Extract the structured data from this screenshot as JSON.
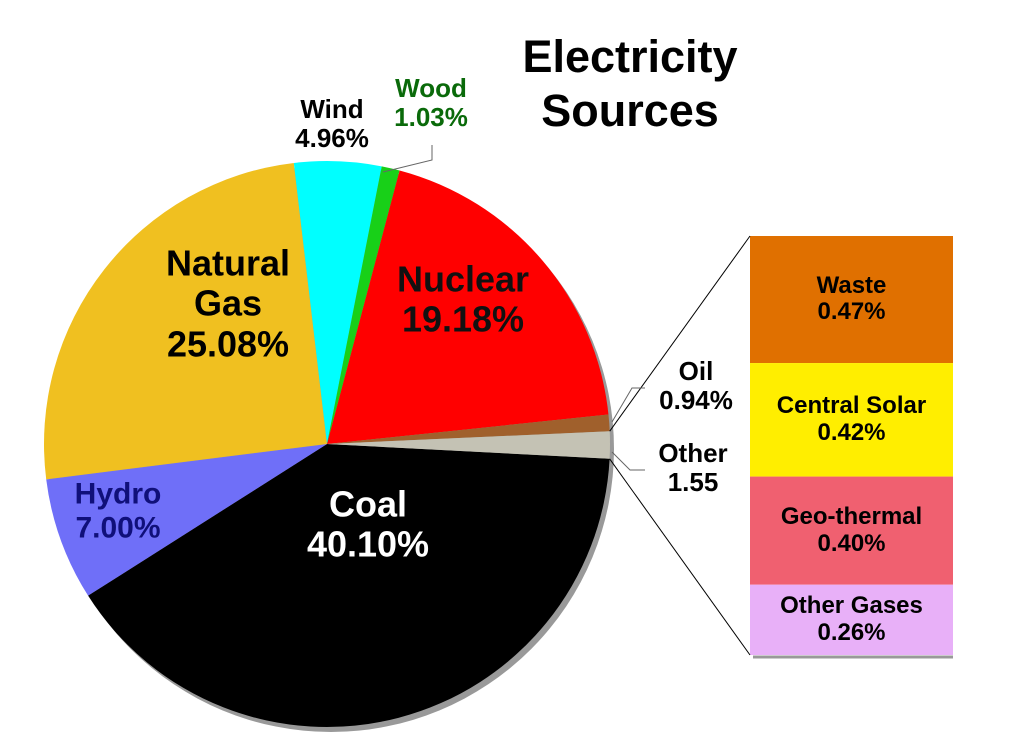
{
  "chart_data": {
    "type": "pie",
    "title": "Electricity Sources",
    "categories": [
      "Coal",
      "Hydro",
      "Natural Gas",
      "Wind",
      "Wood",
      "Nuclear",
      "Oil",
      "Other"
    ],
    "values": [
      40.1,
      7.0,
      25.08,
      4.96,
      1.03,
      19.18,
      0.94,
      1.55
    ],
    "value_labels": [
      "40.10%",
      "7.00%",
      "25.08%",
      "4.96%",
      "1.03%",
      "19.18%",
      "0.94%",
      "1.55"
    ],
    "colors": [
      "#000000",
      "#6f6ff8",
      "#f0c020",
      "#00ffff",
      "#18d018",
      "#ff0000",
      "#a0602c",
      "#c4c2b4"
    ],
    "breakout": {
      "categories": [
        "Waste",
        "Central Solar",
        "Geo-thermal",
        "Other Gases"
      ],
      "values": [
        0.47,
        0.42,
        0.4,
        0.26
      ],
      "value_labels": [
        "0.47%",
        "0.42%",
        "0.40%",
        "0.26%"
      ],
      "colors": [
        "#e07000",
        "#ffee00",
        "#f06070",
        "#e8b0f8"
      ]
    }
  }
}
